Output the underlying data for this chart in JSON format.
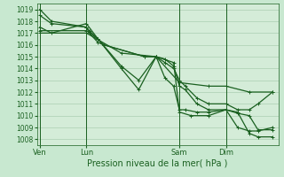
{
  "title": "",
  "xlabel": "Pression niveau de la mer( hPa )",
  "background_color": "#c8e8d0",
  "plot_bg_color": "#d4ecd8",
  "grid_color": "#a0c8a8",
  "line_color": "#1a6020",
  "ylim": [
    1007.5,
    1019.5
  ],
  "yticks": [
    1008,
    1009,
    1010,
    1011,
    1012,
    1013,
    1014,
    1015,
    1016,
    1017,
    1018,
    1019
  ],
  "xtick_labels": [
    "Ven",
    "Lun",
    "Sam",
    "Dim"
  ],
  "xtick_positions": [
    0,
    16,
    48,
    64
  ],
  "vline_positions": [
    0,
    16,
    48,
    64
  ],
  "series": [
    {
      "x": [
        0,
        4,
        16,
        17,
        20,
        22,
        36,
        40,
        43,
        46,
        48,
        50,
        54,
        58,
        64,
        68,
        72,
        75,
        80
      ],
      "y": [
        1019.0,
        1018.0,
        1017.5,
        1017.2,
        1016.5,
        1016.0,
        1015.0,
        1015.0,
        1014.5,
        1014.0,
        1013.0,
        1012.5,
        1011.5,
        1011.0,
        1011.0,
        1010.5,
        1010.5,
        1011.0,
        1012.0
      ]
    },
    {
      "x": [
        0,
        4,
        16,
        17,
        20,
        22,
        36,
        40,
        43,
        46,
        48,
        50,
        54,
        58,
        64,
        68,
        72,
        75,
        80
      ],
      "y": [
        1018.5,
        1017.8,
        1017.5,
        1017.0,
        1016.2,
        1016.0,
        1015.0,
        1015.0,
        1014.8,
        1014.2,
        1012.5,
        1012.2,
        1011.0,
        1010.5,
        1010.5,
        1010.2,
        1010.0,
        1008.8,
        1008.8
      ]
    },
    {
      "x": [
        0,
        4,
        16,
        20,
        28,
        34,
        40,
        43,
        46,
        48,
        50,
        54,
        58,
        64,
        68,
        72,
        75,
        80
      ],
      "y": [
        1017.5,
        1017.0,
        1017.8,
        1016.5,
        1014.2,
        1013.0,
        1015.0,
        1013.2,
        1012.5,
        1010.5,
        1010.5,
        1010.3,
        1010.3,
        1010.5,
        1009.0,
        1008.7,
        1008.7,
        1009.0
      ]
    },
    {
      "x": [
        0,
        16,
        20,
        28,
        34,
        40,
        46,
        48,
        52,
        58,
        64,
        68,
        72,
        75,
        80
      ],
      "y": [
        1017.2,
        1017.2,
        1016.5,
        1014.0,
        1012.2,
        1015.0,
        1014.5,
        1010.3,
        1010.0,
        1010.0,
        1010.5,
        1010.3,
        1008.5,
        1008.2,
        1008.2
      ]
    },
    {
      "x": [
        0,
        16,
        28,
        40,
        48,
        58,
        64,
        72,
        80
      ],
      "y": [
        1017.0,
        1017.0,
        1015.3,
        1015.0,
        1012.8,
        1012.5,
        1012.5,
        1012.0,
        1012.0
      ]
    }
  ],
  "xlabel_fontsize": 7,
  "ytick_fontsize": 5.5,
  "xtick_fontsize": 6,
  "linewidth": 0.9,
  "markersize": 3
}
